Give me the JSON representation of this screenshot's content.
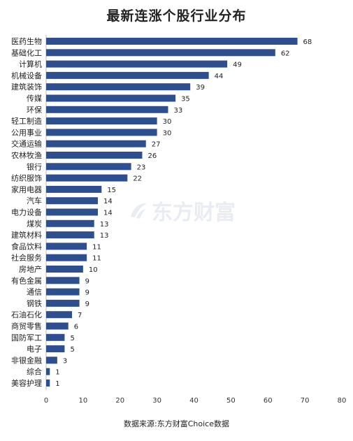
{
  "chart_data": {
    "type": "bar",
    "orientation": "horizontal",
    "title": "最新连涨个股行业分布",
    "categories": [
      "医药生物",
      "基础化工",
      "计算机",
      "机械设备",
      "建筑装饰",
      "传媒",
      "环保",
      "轻工制造",
      "公用事业",
      "交通运输",
      "农林牧渔",
      "银行",
      "纺织服饰",
      "家用电器",
      "汽车",
      "电力设备",
      "煤炭",
      "建筑材料",
      "食品饮料",
      "社会服务",
      "房地产",
      "有色金属",
      "通信",
      "钢铁",
      "石油石化",
      "商贸零售",
      "国防军工",
      "电子",
      "非银金融",
      "综合",
      "美容护理"
    ],
    "values": [
      68,
      62,
      49,
      44,
      39,
      35,
      33,
      30,
      30,
      27,
      26,
      23,
      22,
      15,
      14,
      14,
      13,
      13,
      11,
      11,
      10,
      9,
      9,
      9,
      7,
      6,
      5,
      5,
      3,
      1,
      1
    ],
    "xlim": [
      0,
      80
    ],
    "xticks": [
      0,
      10,
      20,
      30,
      40,
      50,
      60,
      70,
      80
    ],
    "grid": false,
    "bar_color": "#2e4f8f"
  },
  "source": "数据来源:东方财富Choice数据",
  "watermark": "东方财富",
  "watermark_icon": "eastmoney-logo-icon"
}
